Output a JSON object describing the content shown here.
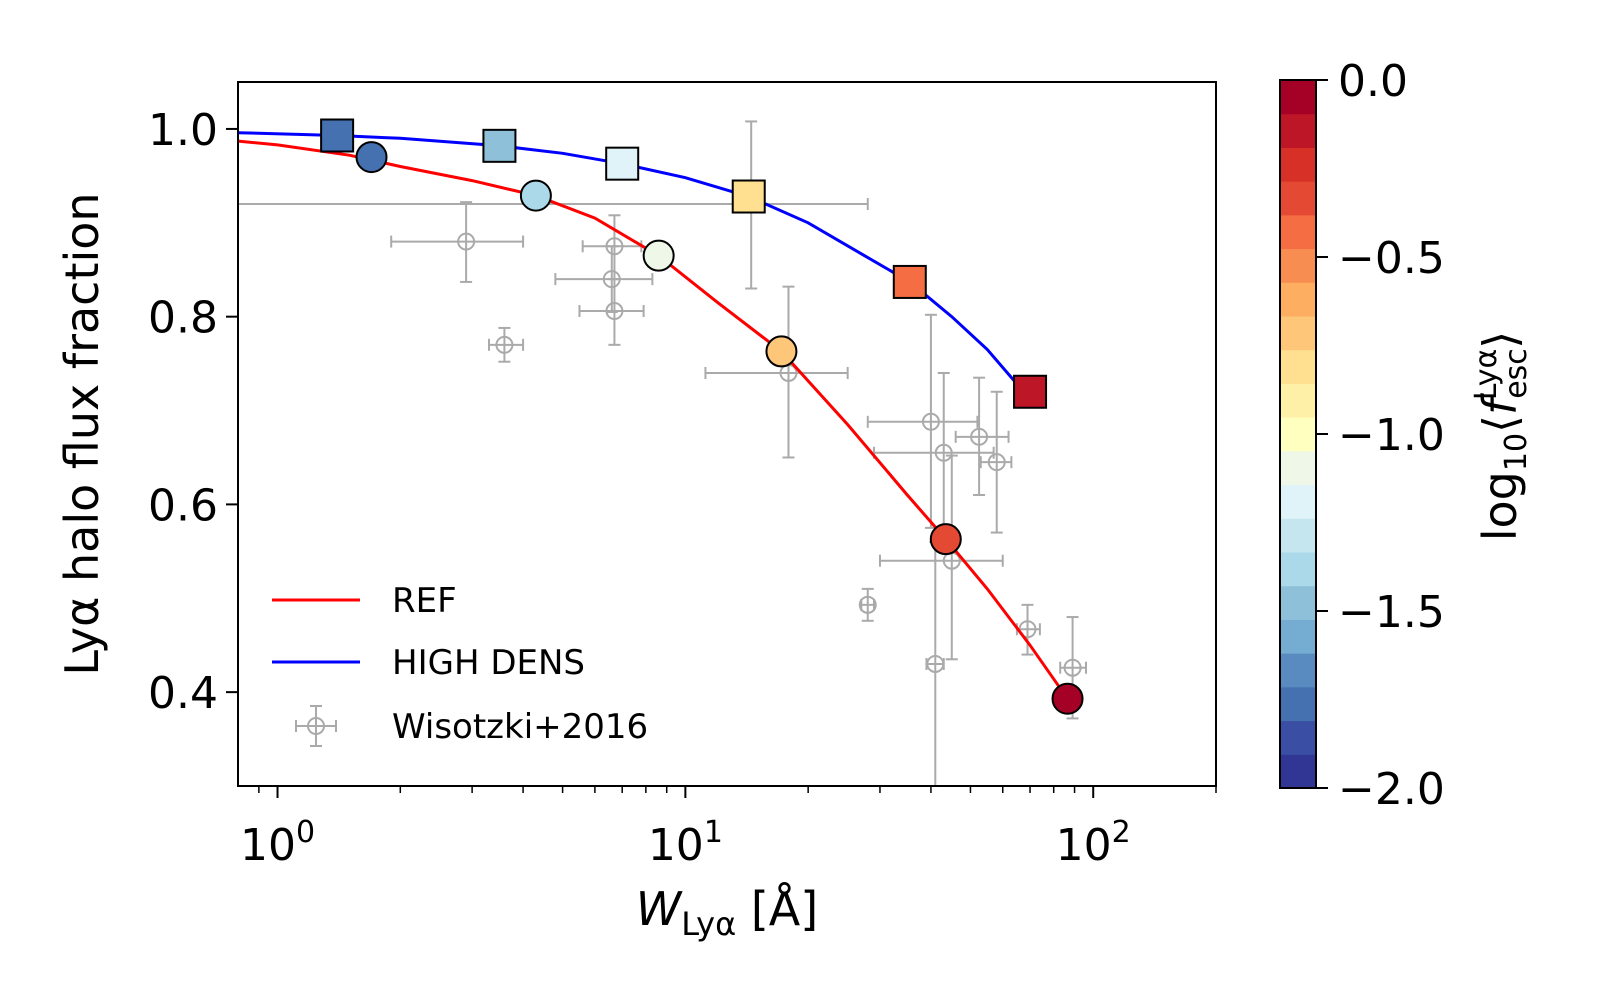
{
  "chart_data": {
    "type": "scatter",
    "x_scale": "log",
    "xlim": [
      0.8,
      200
    ],
    "ylim": [
      0.3,
      1.05
    ],
    "x_ticks": [
      {
        "value": 1,
        "label": "10",
        "exp": "0"
      },
      {
        "value": 10,
        "label": "10",
        "exp": "1"
      },
      {
        "value": 100,
        "label": "10",
        "exp": "2"
      }
    ],
    "y_ticks": [
      {
        "value": 0.4,
        "label": "0.4"
      },
      {
        "value": 0.6,
        "label": "0.6"
      },
      {
        "value": 0.8,
        "label": "0.8"
      },
      {
        "value": 1.0,
        "label": "1.0"
      }
    ],
    "xlabel": {
      "main": "W",
      "sub": "Lyα",
      "unit": " [Å]"
    },
    "ylabel": "Lyα halo flux fraction",
    "legend": {
      "position": "lower-left",
      "entries": [
        {
          "label": "REF",
          "color": "#ff0000"
        },
        {
          "label": "HIGH DENS",
          "color": "#0000ff"
        },
        {
          "label": "Wisotzki+2016",
          "color": "#aaaaaa"
        }
      ]
    },
    "series": [
      {
        "name": "REF",
        "color": "#ff0000",
        "marker": "circle",
        "curve": [
          [
            0.8,
            0.987
          ],
          [
            1.0,
            0.983
          ],
          [
            1.5,
            0.972
          ],
          [
            2.0,
            0.96
          ],
          [
            3.0,
            0.945
          ],
          [
            4.3,
            0.929
          ],
          [
            6.0,
            0.905
          ],
          [
            8.6,
            0.865
          ],
          [
            12.0,
            0.815
          ],
          [
            17.2,
            0.763
          ],
          [
            25.0,
            0.685
          ],
          [
            35.0,
            0.61
          ],
          [
            43.5,
            0.563
          ],
          [
            55.0,
            0.51
          ],
          [
            70.0,
            0.45
          ],
          [
            86.5,
            0.393
          ]
        ],
        "points": [
          {
            "x": 1.7,
            "y": 0.97,
            "cvalue": -1.75
          },
          {
            "x": 4.3,
            "y": 0.929,
            "cvalue": -1.35
          },
          {
            "x": 8.6,
            "y": 0.865,
            "cvalue": -1.05
          },
          {
            "x": 17.2,
            "y": 0.763,
            "cvalue": -0.75
          },
          {
            "x": 43.5,
            "y": 0.563,
            "cvalue": -0.3
          },
          {
            "x": 86.5,
            "y": 0.393,
            "cvalue": -0.03
          }
        ]
      },
      {
        "name": "HIGH DENS",
        "color": "#0000ff",
        "marker": "square",
        "curve": [
          [
            0.8,
            0.996
          ],
          [
            1.4,
            0.993
          ],
          [
            2.0,
            0.99
          ],
          [
            3.5,
            0.982
          ],
          [
            5.0,
            0.974
          ],
          [
            7.0,
            0.963
          ],
          [
            10.0,
            0.948
          ],
          [
            14.3,
            0.928
          ],
          [
            20.0,
            0.9
          ],
          [
            27.0,
            0.867
          ],
          [
            35.5,
            0.837
          ],
          [
            45.0,
            0.8
          ],
          [
            55.0,
            0.765
          ],
          [
            66.0,
            0.725
          ]
        ],
        "points": [
          {
            "x": 1.4,
            "y": 0.993,
            "cvalue": -1.8
          },
          {
            "x": 3.5,
            "y": 0.982,
            "cvalue": -1.45
          },
          {
            "x": 7.0,
            "y": 0.963,
            "cvalue": -1.2
          },
          {
            "x": 14.3,
            "y": 0.928,
            "cvalue": -0.8
          },
          {
            "x": 35.5,
            "y": 0.837,
            "cvalue": -0.45
          },
          {
            "x": 70.0,
            "y": 0.72,
            "cvalue": -0.1
          }
        ]
      },
      {
        "name": "Wisotzki+2016",
        "color": "#aaaaaa",
        "marker": "open-circle",
        "points": [
          {
            "x": 2.9,
            "y": 0.88,
            "xlo": 1.9,
            "xhi": 4.0,
            "ylo": 0.837,
            "yhi": 0.922
          },
          {
            "x": 3.6,
            "y": 0.77,
            "xlo": 3.3,
            "xhi": 4.0,
            "ylo": 0.752,
            "yhi": 0.788
          },
          {
            "x": 6.7,
            "y": 0.875,
            "xlo": 5.6,
            "xhi": 7.8,
            "ylo": 0.84,
            "yhi": 0.908
          },
          {
            "x": 6.6,
            "y": 0.84,
            "xlo": 4.8,
            "xhi": 8.3,
            "ylo": 0.805,
            "yhi": 0.875
          },
          {
            "x": 6.7,
            "y": 0.806,
            "xlo": 5.5,
            "xhi": 7.9,
            "ylo": 0.77,
            "yhi": 0.84
          },
          {
            "x": 14.5,
            "y": 0.92,
            "xlo": 0.8,
            "xhi": 28.0,
            "ylo": 0.83,
            "yhi": 1.008
          },
          {
            "x": 17.9,
            "y": 0.74,
            "xlo": 11.2,
            "xhi": 25.0,
            "ylo": 0.65,
            "yhi": 0.832
          },
          {
            "x": 40.0,
            "y": 0.688,
            "xlo": 28.0,
            "xhi": 52.0,
            "ylo": 0.575,
            "yhi": 0.802
          },
          {
            "x": 43.0,
            "y": 0.655,
            "xlo": 29.0,
            "xhi": 57.0,
            "ylo": 0.57,
            "yhi": 0.74
          },
          {
            "x": 52.5,
            "y": 0.672,
            "xlo": 46.0,
            "xhi": 62.0,
            "ylo": 0.61,
            "yhi": 0.735
          },
          {
            "x": 58.0,
            "y": 0.645,
            "xlo": 53.0,
            "xhi": 63.0,
            "ylo": 0.57,
            "yhi": 0.72
          },
          {
            "x": 45.0,
            "y": 0.54,
            "xlo": 30.0,
            "xhi": 60.0,
            "ylo": 0.435,
            "yhi": 0.652
          },
          {
            "x": 28.0,
            "y": 0.493,
            "xlo": 27.0,
            "xhi": 29.0,
            "ylo": 0.476,
            "yhi": 0.51
          },
          {
            "x": 41.0,
            "y": 0.43,
            "xlo": 39.0,
            "xhi": 43.0,
            "ylo": 0.3,
            "yhi": 0.56
          },
          {
            "x": 69.0,
            "y": 0.467,
            "xlo": 65.0,
            "xhi": 74.0,
            "ylo": 0.44,
            "yhi": 0.493
          },
          {
            "x": 89.0,
            "y": 0.426,
            "xlo": 83.0,
            "xhi": 96.0,
            "ylo": 0.372,
            "yhi": 0.48
          }
        ]
      }
    ],
    "colorbar": {
      "label": "log10⟨f_esc^Lyα⟩",
      "label_parts": {
        "log": "log",
        "sub10": "10",
        "f": "f",
        "esc": "esc",
        "sup": "Lyα"
      },
      "range": [
        -2.0,
        0.0
      ],
      "ticks": [
        {
          "value": 0.0,
          "label": "0.0"
        },
        {
          "value": -0.5,
          "label": "−0.5"
        },
        {
          "value": -1.0,
          "label": "−1.0"
        },
        {
          "value": -1.5,
          "label": "−1.5"
        },
        {
          "value": -2.0,
          "label": "−2.0"
        }
      ],
      "colors": [
        "#313695",
        "#3a4fa3",
        "#4571b1",
        "#5a8bc0",
        "#74add1",
        "#8ec0da",
        "#abd9e9",
        "#c6e6ef",
        "#e0f3f8",
        "#eff8e8",
        "#ffffbf",
        "#fff0a8",
        "#fee090",
        "#fdc679",
        "#fdae61",
        "#f88d52",
        "#f46d43",
        "#e34933",
        "#d73027",
        "#bd1627",
        "#a50026"
      ]
    }
  }
}
